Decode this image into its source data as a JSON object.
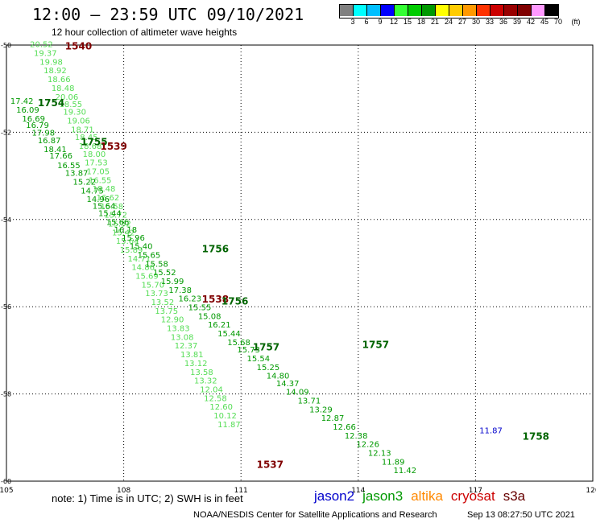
{
  "header": {
    "title": "12:00 – 23:59 UTC 09/10/2021",
    "subtitle": "12 hour collection of altimeter wave heights"
  },
  "scale": {
    "unit": "(ft)",
    "labels": [
      "3",
      "6",
      "9",
      "12",
      "15",
      "18",
      "21",
      "24",
      "27",
      "30",
      "33",
      "36",
      "39",
      "42",
      "45",
      "70"
    ],
    "colors": [
      "#808080",
      "#00ffff",
      "#00bfff",
      "#0000ff",
      "#33ff33",
      "#00cc00",
      "#009900",
      "#ffff00",
      "#ffcc00",
      "#ff9900",
      "#ff3300",
      "#cc0000",
      "#990000",
      "#800000",
      "#ff99ff",
      "#000000"
    ]
  },
  "axes": {
    "x_ticks": [
      "105",
      "108",
      "111",
      "114",
      "117",
      "120"
    ],
    "y_ticks": [
      "-50",
      "-52",
      "-54",
      "-56",
      "-58",
      "-60"
    ]
  },
  "chart_data": {
    "type": "scatter",
    "x_range": [
      105,
      120
    ],
    "y_range": [
      -60,
      -50
    ],
    "grid": true,
    "times": [
      {
        "label": "1540",
        "x": 106.5,
        "y": -50.1,
        "color": "#800000"
      },
      {
        "label": "1754",
        "x": 105.8,
        "y": -51.4,
        "color": "#006400"
      },
      {
        "label": "1755",
        "x": 106.9,
        "y": -52.3,
        "color": "#006400"
      },
      {
        "label": "1539",
        "x": 107.4,
        "y": -52.4,
        "color": "#800000"
      },
      {
        "label": "1756",
        "x": 110.0,
        "y": -54.75,
        "color": "#006400"
      },
      {
        "label": "1538",
        "x": 110.0,
        "y": -55.9,
        "color": "#800000"
      },
      {
        "label": "1756",
        "x": 110.5,
        "y": -55.95,
        "color": "#006400"
      },
      {
        "label": "1757",
        "x": 111.3,
        "y": -57.0,
        "color": "#006400"
      },
      {
        "label": "1537",
        "x": 111.4,
        "y": -59.7,
        "color": "#800000"
      },
      {
        "label": "1757",
        "x": 114.1,
        "y": -56.95,
        "color": "#006400"
      },
      {
        "label": "1758",
        "x": 118.2,
        "y": -59.05,
        "color": "#006400"
      }
    ],
    "tracks": [
      {
        "name": "cryosat",
        "color": "#55dd55",
        "points": [
          {
            "x": 105.6,
            "y": -50.05,
            "v": "20.52"
          },
          {
            "x": 105.7,
            "y": -50.25,
            "v": "19.37"
          },
          {
            "x": 105.85,
            "y": -50.45,
            "v": "19.98"
          },
          {
            "x": 105.95,
            "y": -50.65,
            "v": "18.92"
          },
          {
            "x": 106.05,
            "y": -50.85,
            "v": "18.66"
          },
          {
            "x": 106.15,
            "y": -51.05,
            "v": "18.48"
          },
          {
            "x": 106.25,
            "y": -51.25,
            "v": "20.06"
          },
          {
            "x": 106.35,
            "y": -51.42,
            "v": "18.55"
          },
          {
            "x": 106.45,
            "y": -51.6,
            "v": "19.30"
          },
          {
            "x": 106.55,
            "y": -51.8,
            "v": "19.06"
          },
          {
            "x": 106.65,
            "y": -52.0,
            "v": "18.71"
          },
          {
            "x": 106.75,
            "y": -52.18,
            "v": "18.45"
          },
          {
            "x": 106.85,
            "y": -52.38,
            "v": "18.68"
          },
          {
            "x": 106.95,
            "y": -52.56,
            "v": "18.00"
          },
          {
            "x": 107.0,
            "y": -52.76,
            "v": "17.53"
          },
          {
            "x": 107.05,
            "y": -52.96,
            "v": "17.05"
          },
          {
            "x": 107.1,
            "y": -53.16,
            "v": "16.55"
          },
          {
            "x": 107.2,
            "y": -53.36,
            "v": "18.48"
          },
          {
            "x": 107.3,
            "y": -53.56,
            "v": "16.62"
          },
          {
            "x": 107.4,
            "y": -53.76,
            "v": "15.58"
          },
          {
            "x": 107.5,
            "y": -53.96,
            "v": "15.72"
          },
          {
            "x": 107.6,
            "y": -54.16,
            "v": "15.52"
          },
          {
            "x": 107.7,
            "y": -54.36,
            "v": "15.42"
          },
          {
            "x": 107.8,
            "y": -54.56,
            "v": "15.64"
          },
          {
            "x": 107.9,
            "y": -54.76,
            "v": "15.89"
          },
          {
            "x": 108.1,
            "y": -54.96,
            "v": "14.71"
          },
          {
            "x": 108.2,
            "y": -55.16,
            "v": "14.86"
          },
          {
            "x": 108.3,
            "y": -55.36,
            "v": "15.69"
          },
          {
            "x": 108.45,
            "y": -55.56,
            "v": "15.70"
          },
          {
            "x": 108.55,
            "y": -55.76,
            "v": "13.73"
          },
          {
            "x": 108.7,
            "y": -55.96,
            "v": "13.52"
          },
          {
            "x": 108.8,
            "y": -56.16,
            "v": "13.75"
          },
          {
            "x": 108.95,
            "y": -56.36,
            "v": "12.90"
          },
          {
            "x": 109.1,
            "y": -56.56,
            "v": "13.83"
          },
          {
            "x": 109.2,
            "y": -56.76,
            "v": "13.08"
          },
          {
            "x": 109.3,
            "y": -56.96,
            "v": "12.37"
          },
          {
            "x": 109.45,
            "y": -57.16,
            "v": "13.81"
          },
          {
            "x": 109.55,
            "y": -57.36,
            "v": "13.12"
          },
          {
            "x": 109.7,
            "y": -57.56,
            "v": "13.58"
          },
          {
            "x": 109.8,
            "y": -57.76,
            "v": "13.32"
          },
          {
            "x": 109.95,
            "y": -57.96,
            "v": "12.04"
          },
          {
            "x": 110.05,
            "y": -58.16,
            "v": "12.58"
          },
          {
            "x": 110.2,
            "y": -58.36,
            "v": "12.60"
          },
          {
            "x": 110.3,
            "y": -58.56,
            "v": "10.12"
          },
          {
            "x": 110.4,
            "y": -58.76,
            "v": "11.87"
          }
        ]
      },
      {
        "name": "jason3",
        "color": "#009900",
        "points": [
          {
            "x": 105.1,
            "y": -51.35,
            "v": "17.42"
          },
          {
            "x": 105.25,
            "y": -51.55,
            "v": "16.09"
          },
          {
            "x": 105.4,
            "y": -51.75,
            "v": "16.69"
          },
          {
            "x": 105.5,
            "y": -51.9,
            "v": "16.79"
          },
          {
            "x": 105.65,
            "y": -52.08,
            "v": "17.98"
          },
          {
            "x": 105.8,
            "y": -52.25,
            "v": "16.87"
          },
          {
            "x": 105.95,
            "y": -52.45,
            "v": "18.41"
          },
          {
            "x": 106.1,
            "y": -52.6,
            "v": "17.66"
          },
          {
            "x": 106.3,
            "y": -52.82,
            "v": "16.55"
          },
          {
            "x": 106.5,
            "y": -53.0,
            "v": "13.87"
          },
          {
            "x": 106.7,
            "y": -53.2,
            "v": "15.22"
          },
          {
            "x": 106.9,
            "y": -53.4,
            "v": "14.75"
          },
          {
            "x": 107.05,
            "y": -53.6,
            "v": "14.96"
          },
          {
            "x": 107.2,
            "y": -53.75,
            "v": "15.64"
          },
          {
            "x": 107.35,
            "y": -53.92,
            "v": "15.44"
          },
          {
            "x": 107.55,
            "y": -54.12,
            "v": "15.66"
          },
          {
            "x": 107.75,
            "y": -54.3,
            "v": "16.18"
          },
          {
            "x": 107.95,
            "y": -54.48,
            "v": "15.96"
          },
          {
            "x": 108.15,
            "y": -54.68,
            "v": "15.40"
          },
          {
            "x": 108.35,
            "y": -54.88,
            "v": "15.65"
          },
          {
            "x": 108.55,
            "y": -55.08,
            "v": "15.58"
          },
          {
            "x": 108.75,
            "y": -55.28,
            "v": "15.52"
          },
          {
            "x": 108.95,
            "y": -55.48,
            "v": "15.99"
          },
          {
            "x": 109.15,
            "y": -55.68,
            "v": "17.38"
          },
          {
            "x": 109.4,
            "y": -55.88,
            "v": "16.23"
          },
          {
            "x": 109.65,
            "y": -56.08,
            "v": "15.55"
          },
          {
            "x": 109.9,
            "y": -56.28,
            "v": "15.08"
          },
          {
            "x": 110.15,
            "y": -56.48,
            "v": "16.21"
          },
          {
            "x": 110.4,
            "y": -56.68,
            "v": "15.44"
          },
          {
            "x": 110.65,
            "y": -56.88,
            "v": "15.68"
          },
          {
            "x": 110.9,
            "y": -57.05,
            "v": "15.73"
          },
          {
            "x": 111.15,
            "y": -57.25,
            "v": "15.54"
          },
          {
            "x": 111.4,
            "y": -57.45,
            "v": "15.25"
          },
          {
            "x": 111.65,
            "y": -57.65,
            "v": "14.80"
          },
          {
            "x": 111.9,
            "y": -57.82,
            "v": "14.37"
          },
          {
            "x": 112.15,
            "y": -58.02,
            "v": "14.09"
          },
          {
            "x": 112.45,
            "y": -58.22,
            "v": "13.71"
          },
          {
            "x": 112.75,
            "y": -58.42,
            "v": "13.29"
          },
          {
            "x": 113.05,
            "y": -58.62,
            "v": "12.87"
          },
          {
            "x": 113.35,
            "y": -58.82,
            "v": "12.66"
          },
          {
            "x": 113.65,
            "y": -59.02,
            "v": "12.38"
          },
          {
            "x": 113.95,
            "y": -59.22,
            "v": "12.26"
          },
          {
            "x": 114.25,
            "y": -59.42,
            "v": "12.13"
          },
          {
            "x": 114.6,
            "y": -59.62,
            "v": "11.89"
          },
          {
            "x": 114.9,
            "y": -59.82,
            "v": "11.42"
          }
        ]
      },
      {
        "name": "jason2",
        "color": "#0000cc",
        "points": [
          {
            "x": 117.1,
            "y": -58.9,
            "v": "11.87"
          }
        ]
      }
    ]
  },
  "note": "note: 1) Time is in UTC; 2) SWH is in feet",
  "legend": [
    {
      "name": "jason2",
      "color": "#0000cc"
    },
    {
      "name": "jason3",
      "color": "#009900"
    },
    {
      "name": "altika",
      "color": "#ff8800"
    },
    {
      "name": "cryosat",
      "color": "#cc0000"
    },
    {
      "name": "s3a",
      "color": "#660000"
    }
  ],
  "credit": "NOAA/NESDIS Center for Satellite Applications and Research",
  "credit_date": "Sep 13 08:27:50 UTC 2021"
}
